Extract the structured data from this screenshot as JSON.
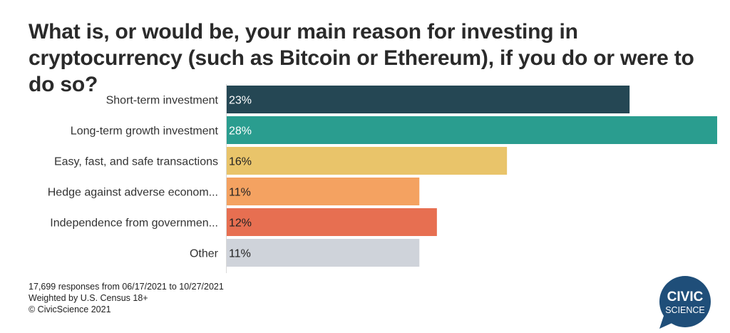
{
  "title": "What is, or would be, your main reason for investing in cryptocurrency (such as Bitcoin or Ethereum), if you do or were to do so?",
  "chart_data": {
    "type": "bar",
    "orientation": "horizontal",
    "title": "What is, or would be, your main reason for investing in cryptocurrency (such as Bitcoin or Ethereum), if you do or were to do so?",
    "categories": [
      "Short-term investment",
      "Long-term growth investment",
      "Easy, fast, and safe transactions",
      "Hedge against adverse econom...",
      "Independence from governmen...",
      "Other"
    ],
    "values": [
      23,
      28,
      16,
      11,
      12,
      11
    ],
    "data_labels": [
      "23%",
      "28%",
      "16%",
      "11%",
      "12%",
      "11%"
    ],
    "colors": [
      "#254754",
      "#2a9d8f",
      "#e9c46a",
      "#f4a261",
      "#e76f51",
      "#cfd3da"
    ],
    "label_colors": [
      "#ffffff",
      "#ffffff",
      "#222222",
      "#222222",
      "#222222",
      "#222222"
    ],
    "xlim": [
      0,
      28
    ],
    "grid": false
  },
  "footer": {
    "line1": "17,699 responses from 06/17/2021 to 10/27/2021",
    "line2": "Weighted by U.S. Census 18+",
    "line3": "© CivicScience 2021"
  },
  "logo": {
    "line1": "CIVIC",
    "line2": "SCIENCE",
    "color": "#1f4e79"
  }
}
